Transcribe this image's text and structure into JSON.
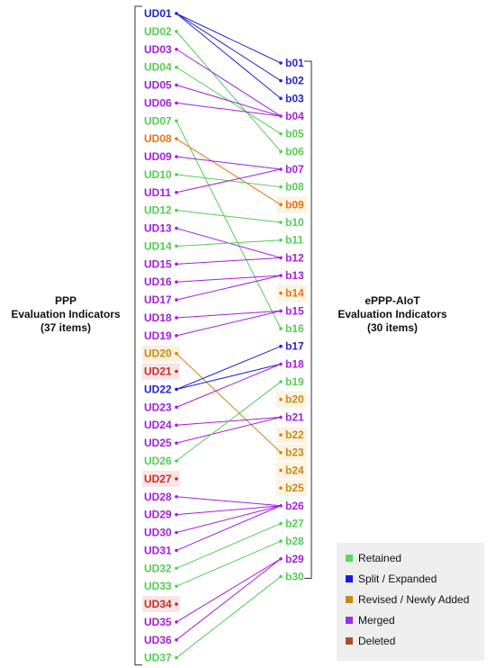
{
  "left_group": {
    "line1": "PPP",
    "line2": "Evaluation Indicators",
    "line3": "(37 items)"
  },
  "right_group": {
    "line1": "ePPP-AIoT",
    "line2": "Evaluation Indicators",
    "line3": "(30 items)"
  },
  "colors": {
    "retained": "#5cd65c",
    "split": "#2222cc",
    "revised": "#c48a1a",
    "merged": "#a020e0",
    "deleted": "#c03030"
  },
  "legend": [
    {
      "key": "retained",
      "label": "Retained",
      "color": "#5cd65c"
    },
    {
      "key": "split",
      "label": "Split / Expanded",
      "color": "#1a1adc"
    },
    {
      "key": "revised",
      "label": "Revised / Newly Added",
      "color": "#c48a1a"
    },
    {
      "key": "merged",
      "label": "Merged",
      "color": "#9a30e8"
    },
    {
      "key": "deleted",
      "label": "Deleted",
      "color": "#a0522d"
    }
  ],
  "left_items": [
    {
      "label": "UD01",
      "status": "split"
    },
    {
      "label": "UD02",
      "status": "retained"
    },
    {
      "label": "UD03",
      "status": "merged"
    },
    {
      "label": "UD04",
      "status": "retained"
    },
    {
      "label": "UD05",
      "status": "merged"
    },
    {
      "label": "UD06",
      "status": "merged"
    },
    {
      "label": "UD07",
      "status": "retained"
    },
    {
      "label": "UD08",
      "status": "revised_orange"
    },
    {
      "label": "UD09",
      "status": "merged"
    },
    {
      "label": "UD10",
      "status": "retained"
    },
    {
      "label": "UD11",
      "status": "merged"
    },
    {
      "label": "UD12",
      "status": "retained"
    },
    {
      "label": "UD13",
      "status": "merged"
    },
    {
      "label": "UD14",
      "status": "retained"
    },
    {
      "label": "UD15",
      "status": "merged"
    },
    {
      "label": "UD16",
      "status": "merged"
    },
    {
      "label": "UD17",
      "status": "merged"
    },
    {
      "label": "UD18",
      "status": "merged"
    },
    {
      "label": "UD19",
      "status": "merged"
    },
    {
      "label": "UD20",
      "status": "revised"
    },
    {
      "label": "UD21",
      "status": "deleted"
    },
    {
      "label": "UD22",
      "status": "split"
    },
    {
      "label": "UD23",
      "status": "merged"
    },
    {
      "label": "UD24",
      "status": "merged"
    },
    {
      "label": "UD25",
      "status": "merged"
    },
    {
      "label": "UD26",
      "status": "retained"
    },
    {
      "label": "UD27",
      "status": "deleted"
    },
    {
      "label": "UD28",
      "status": "merged"
    },
    {
      "label": "UD29",
      "status": "merged"
    },
    {
      "label": "UD30",
      "status": "merged"
    },
    {
      "label": "UD31",
      "status": "merged"
    },
    {
      "label": "UD32",
      "status": "retained"
    },
    {
      "label": "UD33",
      "status": "retained"
    },
    {
      "label": "UD34",
      "status": "deleted"
    },
    {
      "label": "UD35",
      "status": "merged"
    },
    {
      "label": "UD36",
      "status": "merged"
    },
    {
      "label": "UD37",
      "status": "retained"
    }
  ],
  "right_items": [
    {
      "label": "b01",
      "status": "split"
    },
    {
      "label": "b02",
      "status": "split"
    },
    {
      "label": "b03",
      "status": "split"
    },
    {
      "label": "b04",
      "status": "merged"
    },
    {
      "label": "b05",
      "status": "retained"
    },
    {
      "label": "b06",
      "status": "retained"
    },
    {
      "label": "b07",
      "status": "merged"
    },
    {
      "label": "b08",
      "status": "retained"
    },
    {
      "label": "b09",
      "status": "revised_orange"
    },
    {
      "label": "b10",
      "status": "retained"
    },
    {
      "label": "b11",
      "status": "retained"
    },
    {
      "label": "b12",
      "status": "merged"
    },
    {
      "label": "b13",
      "status": "merged"
    },
    {
      "label": "b14",
      "status": "revised_orange"
    },
    {
      "label": "b15",
      "status": "merged"
    },
    {
      "label": "b16",
      "status": "retained"
    },
    {
      "label": "b17",
      "status": "split"
    },
    {
      "label": "b18",
      "status": "merged"
    },
    {
      "label": "b19",
      "status": "retained"
    },
    {
      "label": "b20",
      "status": "revised"
    },
    {
      "label": "b21",
      "status": "merged"
    },
    {
      "label": "b22",
      "status": "revised"
    },
    {
      "label": "b23",
      "status": "revised"
    },
    {
      "label": "b24",
      "status": "revised"
    },
    {
      "label": "b25",
      "status": "revised"
    },
    {
      "label": "b26",
      "status": "merged"
    },
    {
      "label": "b27",
      "status": "retained"
    },
    {
      "label": "b28",
      "status": "retained"
    },
    {
      "label": "b29",
      "status": "merged"
    },
    {
      "label": "b30",
      "status": "retained"
    }
  ],
  "connections": [
    {
      "from": "UD01",
      "to": "b01",
      "status": "split"
    },
    {
      "from": "UD01",
      "to": "b02",
      "status": "split"
    },
    {
      "from": "UD01",
      "to": "b03",
      "status": "split"
    },
    {
      "from": "UD02",
      "to": "b06",
      "status": "retained"
    },
    {
      "from": "UD03",
      "to": "b04",
      "status": "merged"
    },
    {
      "from": "UD04",
      "to": "b05",
      "status": "retained"
    },
    {
      "from": "UD05",
      "to": "b04",
      "status": "merged"
    },
    {
      "from": "UD06",
      "to": "b04",
      "status": "merged"
    },
    {
      "from": "UD07",
      "to": "b16",
      "status": "retained"
    },
    {
      "from": "UD08",
      "to": "b09",
      "status": "revised_orange"
    },
    {
      "from": "UD09",
      "to": "b07",
      "status": "merged"
    },
    {
      "from": "UD10",
      "to": "b08",
      "status": "retained"
    },
    {
      "from": "UD11",
      "to": "b07",
      "status": "merged"
    },
    {
      "from": "UD12",
      "to": "b10",
      "status": "retained"
    },
    {
      "from": "UD13",
      "to": "b12",
      "status": "merged"
    },
    {
      "from": "UD14",
      "to": "b11",
      "status": "retained"
    },
    {
      "from": "UD15",
      "to": "b12",
      "status": "merged"
    },
    {
      "from": "UD16",
      "to": "b13",
      "status": "merged"
    },
    {
      "from": "UD17",
      "to": "b13",
      "status": "merged"
    },
    {
      "from": "UD18",
      "to": "b15",
      "status": "merged"
    },
    {
      "from": "UD19",
      "to": "b15",
      "status": "merged"
    },
    {
      "from": "UD20",
      "to": "b23",
      "status": "revised"
    },
    {
      "from": "UD22",
      "to": "b17",
      "status": "split"
    },
    {
      "from": "UD22",
      "to": "b18",
      "status": "split"
    },
    {
      "from": "UD23",
      "to": "b18",
      "status": "merged"
    },
    {
      "from": "UD24",
      "to": "b21",
      "status": "merged"
    },
    {
      "from": "UD25",
      "to": "b21",
      "status": "merged"
    },
    {
      "from": "UD26",
      "to": "b19",
      "status": "retained"
    },
    {
      "from": "UD28",
      "to": "b26",
      "status": "merged"
    },
    {
      "from": "UD29",
      "to": "b26",
      "status": "merged"
    },
    {
      "from": "UD30",
      "to": "b26",
      "status": "merged"
    },
    {
      "from": "UD31",
      "to": "b26",
      "status": "merged"
    },
    {
      "from": "UD32",
      "to": "b27",
      "status": "retained"
    },
    {
      "from": "UD33",
      "to": "b28",
      "status": "retained"
    },
    {
      "from": "UD35",
      "to": "b29",
      "status": "merged"
    },
    {
      "from": "UD36",
      "to": "b29",
      "status": "merged"
    },
    {
      "from": "UD37",
      "to": "b30",
      "status": "retained"
    }
  ]
}
